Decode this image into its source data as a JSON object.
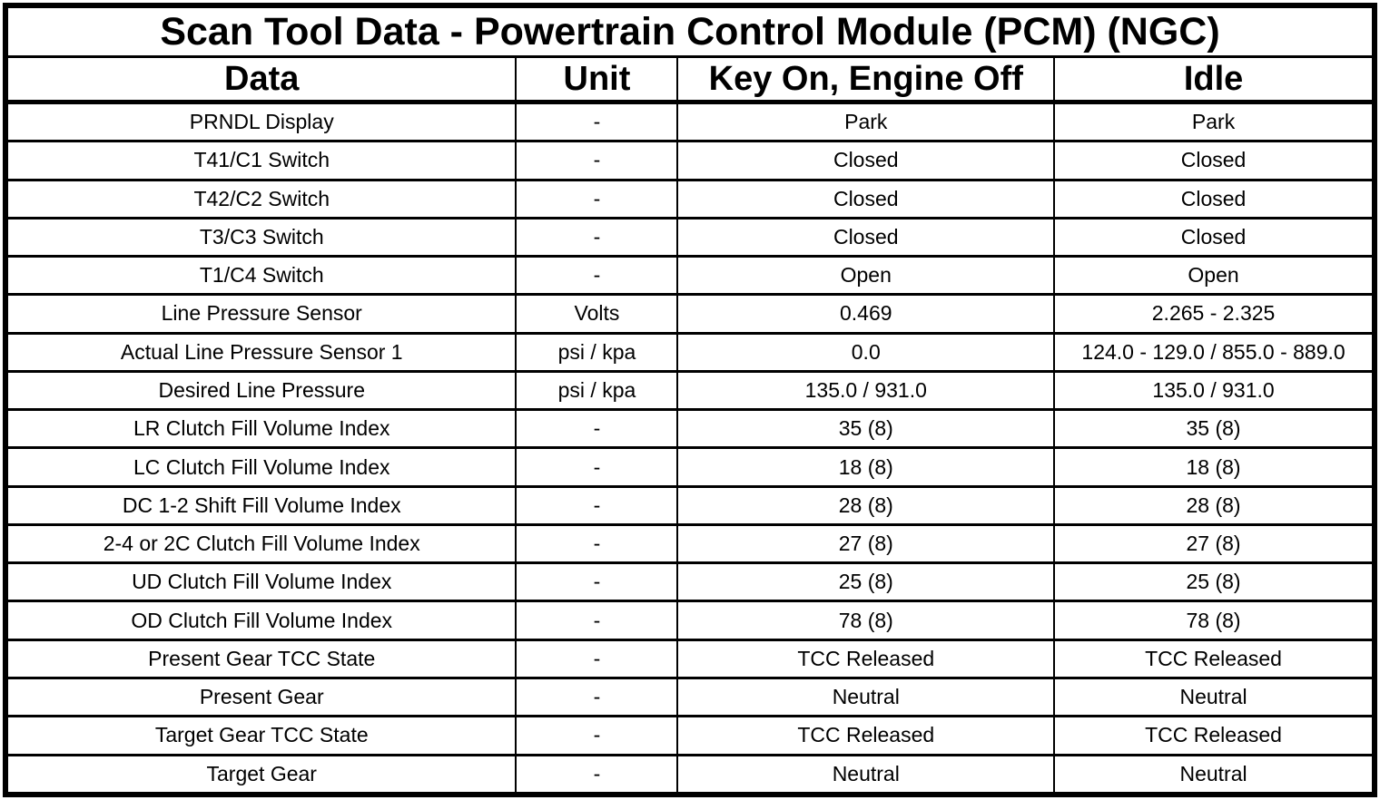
{
  "table": {
    "title": "Scan Tool Data - Powertrain Control Module (PCM) (NGC)",
    "columns": [
      "Data",
      "Unit",
      "Key On, Engine Off",
      "Idle"
    ],
    "rows": [
      [
        "PRNDL Display",
        "-",
        "Park",
        "Park"
      ],
      [
        "T41/C1 Switch",
        "-",
        "Closed",
        "Closed"
      ],
      [
        "T42/C2 Switch",
        "-",
        "Closed",
        "Closed"
      ],
      [
        "T3/C3 Switch",
        "-",
        "Closed",
        "Closed"
      ],
      [
        "T1/C4 Switch",
        "-",
        "Open",
        "Open"
      ],
      [
        "Line Pressure Sensor",
        "Volts",
        "0.469",
        "2.265 - 2.325"
      ],
      [
        "Actual Line Pressure Sensor 1",
        "psi / kpa",
        "0.0",
        "124.0 - 129.0 / 855.0 - 889.0"
      ],
      [
        "Desired Line Pressure",
        "psi / kpa",
        "135.0 / 931.0",
        "135.0 / 931.0"
      ],
      [
        "LR Clutch Fill Volume Index",
        "-",
        "35 (8)",
        "35 (8)"
      ],
      [
        "LC Clutch Fill Volume Index",
        "-",
        "18 (8)",
        "18 (8)"
      ],
      [
        "DC 1-2 Shift Fill Volume Index",
        "-",
        "28 (8)",
        "28 (8)"
      ],
      [
        "2-4 or 2C Clutch Fill Volume Index",
        "-",
        "27 (8)",
        "27 (8)"
      ],
      [
        "UD Clutch Fill Volume Index",
        "-",
        "25 (8)",
        "25 (8)"
      ],
      [
        "OD Clutch Fill Volume Index",
        "-",
        "78 (8)",
        "78 (8)"
      ],
      [
        "Present Gear TCC State",
        "-",
        "TCC Released",
        "TCC Released"
      ],
      [
        "Present Gear",
        "-",
        "Neutral",
        "Neutral"
      ],
      [
        "Target Gear TCC State",
        "-",
        "TCC Released",
        "TCC Released"
      ],
      [
        "Target Gear",
        "-",
        "Neutral",
        "Neutral"
      ]
    ],
    "colors": {
      "border": "#000000",
      "background": "#ffffff",
      "text": "#000000"
    }
  }
}
